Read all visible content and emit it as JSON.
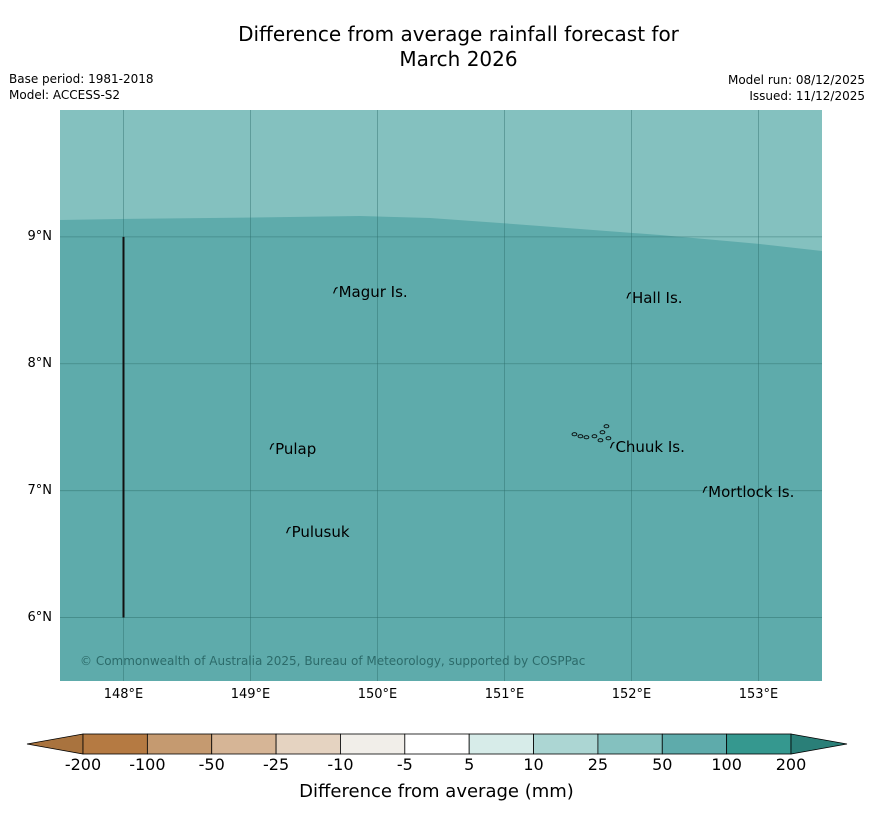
{
  "title": {
    "line1": "Difference from average rainfall forecast for",
    "line2": "March 2026"
  },
  "meta": {
    "base_period": "Base period: 1981-2018",
    "model": "Model: ACCESS-S2",
    "model_run": "Model run: 08/12/2025",
    "issued": "Issued: 11/12/2025"
  },
  "map": {
    "lon_range": [
      147.5,
      153.5
    ],
    "lat_range": [
      5.5,
      10.0
    ],
    "lat_ticks": [
      {
        "value": 9,
        "label": "9°N"
      },
      {
        "value": 8,
        "label": "8°N"
      },
      {
        "value": 7,
        "label": "7°N"
      },
      {
        "value": 6,
        "label": "6°N"
      }
    ],
    "lon_ticks": [
      {
        "value": 148,
        "label": "148°E"
      },
      {
        "value": 149,
        "label": "149°E"
      },
      {
        "value": 150,
        "label": "150°E"
      },
      {
        "value": 151,
        "label": "151°E"
      },
      {
        "value": 152,
        "label": "152°E"
      },
      {
        "value": 153,
        "label": "153°E"
      }
    ],
    "zones": [
      {
        "range": "25 to 50",
        "color": "#84c1bf"
      },
      {
        "range": "50 to 100",
        "color": "#5eabab"
      }
    ],
    "boundary_line": {
      "lon": 148.0,
      "lat_from": 6.0,
      "lat_to": 9.0
    },
    "places": [
      {
        "name": "Magur Is.",
        "lon": 149.67,
        "lat": 8.57
      },
      {
        "name": "Hall Is.",
        "lon": 151.98,
        "lat": 8.53
      },
      {
        "name": "Pulap",
        "lon": 149.17,
        "lat": 7.34
      },
      {
        "name": "Chuuk Is.",
        "lon": 151.85,
        "lat": 7.35
      },
      {
        "name": "Mortlock Is.",
        "lon": 152.58,
        "lat": 7.0
      },
      {
        "name": "Pulusuk",
        "lon": 149.3,
        "lat": 6.68
      }
    ],
    "copyright": "© Commonwealth of Australia 2025, Bureau of Meteorology, supported by COSPPac"
  },
  "colorbar": {
    "title": "Difference from average (mm)",
    "ticks": [
      "-200",
      "-100",
      "-50",
      "-25",
      "-10",
      "-5",
      "5",
      "10",
      "25",
      "50",
      "100",
      "200"
    ],
    "colors": [
      "#a9733e",
      "#b57a42",
      "#c59a70",
      "#d6b596",
      "#e5d3c1",
      "#f1eee9",
      "#ffffff",
      "#d7ece9",
      "#acd6d3",
      "#84c1bf",
      "#5eabab",
      "#35988f",
      "#2a7f78"
    ]
  }
}
